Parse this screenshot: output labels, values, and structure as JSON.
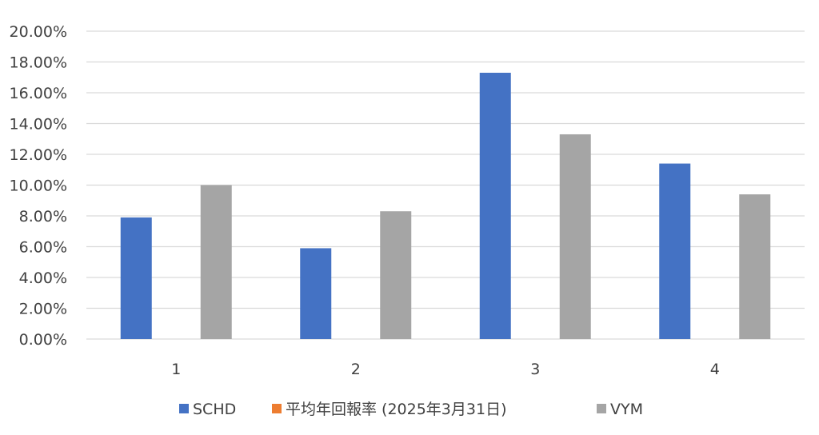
{
  "chart_data": {
    "type": "bar",
    "categories": [
      "1",
      "2",
      "3",
      "4"
    ],
    "series": [
      {
        "name": "SCHD",
        "color": "#4472C4",
        "values": [
          0.079,
          0.059,
          0.173,
          0.114
        ]
      },
      {
        "name": "平均年回報率 (2025年3月31日)",
        "color": "#ED7D31",
        "values": [
          0,
          0,
          0,
          0
        ]
      },
      {
        "name": "VYM",
        "color": "#A5A5A5",
        "values": [
          0.1,
          0.083,
          0.133,
          0.094
        ]
      }
    ],
    "ylim": [
      0,
      0.2
    ],
    "yticks": [
      "0.00%",
      "2.00%",
      "4.00%",
      "6.00%",
      "8.00%",
      "10.00%",
      "12.00%",
      "14.00%",
      "16.00%",
      "18.00%",
      "20.00%"
    ],
    "grid": true,
    "legend": "bottom",
    "title": "",
    "xlabel": "",
    "ylabel": ""
  }
}
